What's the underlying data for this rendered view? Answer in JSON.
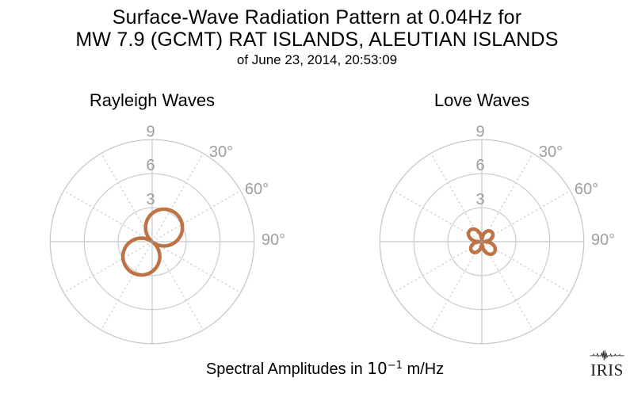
{
  "title": {
    "line1": "Surface-Wave Radiation Pattern at 0.04Hz for",
    "line2": "MW 7.9 (GCMT) RAT ISLANDS, ALEUTIAN ISLANDS",
    "line3": "of June 23, 2014, 20:53:09"
  },
  "caption": {
    "prefix": "Spectral Amplitudes in ",
    "base": "10",
    "exponent": "−1",
    "suffix": " m/Hz"
  },
  "logo": {
    "text": "IRIS"
  },
  "colors": {
    "background": "#ffffff",
    "pattern_stroke": "#be7345",
    "grid_circle": "#cdcdcd",
    "grid_axis": "#c6c6c6",
    "grid_dotted": "#cccccc",
    "tick_label": "#9e9e9e",
    "center_dot": "#969696",
    "text": "#000000",
    "logo": "#1f1f1f"
  },
  "chart_data": [
    {
      "type": "polar",
      "title": "Rayleigh Waves",
      "r_ticks": [
        3,
        6,
        9
      ],
      "r_tick_labels": [
        "3",
        "6",
        "9"
      ],
      "r_max": 9,
      "theta_tick_labels": [
        "30°",
        "60°",
        "90°"
      ],
      "theta_grid_step_deg": 30,
      "units": "10^-1 m/Hz",
      "pattern_lobes": [
        {
          "azimuth_deg": 40,
          "peak_amplitude": 3.25,
          "halfwidth_deg": 90,
          "shape_exp": 1
        },
        {
          "azimuth_deg": 216,
          "peak_amplitude": 3.25,
          "halfwidth_deg": 90,
          "shape_exp": 1
        }
      ]
    },
    {
      "type": "polar",
      "title": "Love Waves",
      "r_ticks": [
        3,
        6,
        9
      ],
      "r_tick_labels": [
        "3",
        "6",
        "9"
      ],
      "r_max": 9,
      "theta_tick_labels": [
        "30°",
        "60°",
        "90°"
      ],
      "theta_grid_step_deg": 30,
      "units": "10^-1 m/Hz",
      "pattern_lobes": [
        {
          "azimuth_deg": 312,
          "peak_amplitude": 1.45,
          "halfwidth_deg": 45,
          "shape_exp": 0.65
        },
        {
          "azimuth_deg": 132,
          "peak_amplitude": 1.45,
          "halfwidth_deg": 45,
          "shape_exp": 0.65
        },
        {
          "azimuth_deg": 46,
          "peak_amplitude": 1.22,
          "halfwidth_deg": 45,
          "shape_exp": 0.65
        },
        {
          "azimuth_deg": 226,
          "peak_amplitude": 1.22,
          "halfwidth_deg": 45,
          "shape_exp": 0.65
        }
      ]
    }
  ]
}
